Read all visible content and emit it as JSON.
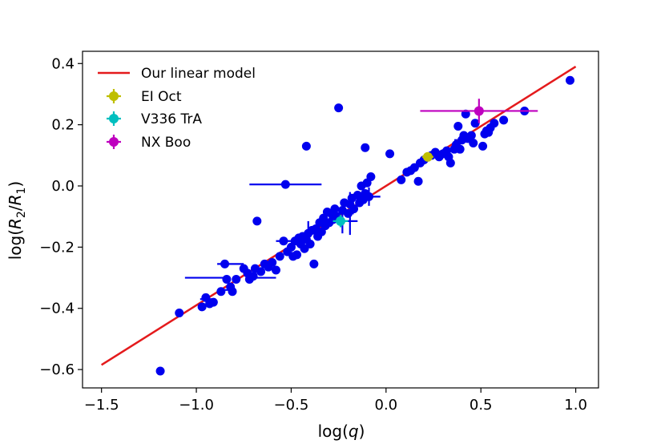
{
  "chart_data": {
    "type": "scatter",
    "xlabel_parts": [
      "log(",
      "q",
      ")"
    ],
    "ylabel_parts": [
      "log(",
      "R",
      "2",
      "/",
      "R",
      "1",
      ")"
    ],
    "xlim": [
      -1.6,
      1.12
    ],
    "ylim": [
      -0.66,
      0.44
    ],
    "xticks": [
      -1.5,
      -1.0,
      -0.5,
      0.0,
      0.5,
      1.0
    ],
    "xtick_labels": [
      "−1.5",
      "−1.0",
      "−0.5",
      "0.0",
      "0.5",
      "1.0"
    ],
    "yticks": [
      -0.6,
      -0.4,
      -0.2,
      0.0,
      0.2,
      0.4
    ],
    "ytick_labels": [
      "−0.6",
      "−0.4",
      "−0.2",
      "0.0",
      "0.2",
      "0.4"
    ],
    "grid": false,
    "legend_position": "top-left",
    "model": {
      "name": "Our linear model",
      "color": "#e41a1c",
      "x": [
        -1.5,
        1.0
      ],
      "y": [
        -0.585,
        0.39
      ]
    },
    "highlighted": [
      {
        "name": "EI Oct",
        "color": "#bfbf00",
        "x": 0.22,
        "y": 0.095,
        "xerr": 0.03,
        "yerr": 0.015
      },
      {
        "name": "V336 TrA",
        "color": "#00bfbf",
        "x": -0.24,
        "y": -0.115,
        "xerr": 0.04,
        "yerr": 0.02
      },
      {
        "name": "NX Boo",
        "color": "#bf00bf",
        "x": 0.49,
        "y": 0.245,
        "xerr": 0.31,
        "yerr": 0.04
      }
    ],
    "sample": {
      "color": "#0000ee",
      "points": [
        {
          "x": -1.19,
          "y": -0.605
        },
        {
          "x": -1.09,
          "y": -0.415
        },
        {
          "x": -0.97,
          "y": -0.395
        },
        {
          "x": -0.95,
          "y": -0.365
        },
        {
          "x": -0.93,
          "y": -0.385
        },
        {
          "x": -0.91,
          "y": -0.38
        },
        {
          "x": -0.87,
          "y": -0.345
        },
        {
          "x": -0.85,
          "y": -0.255
        },
        {
          "x": -0.84,
          "y": -0.305
        },
        {
          "x": -0.82,
          "y": -0.33
        },
        {
          "x": -0.81,
          "y": -0.345
        },
        {
          "x": -0.79,
          "y": -0.305
        },
        {
          "x": -0.75,
          "y": -0.27
        },
        {
          "x": -0.73,
          "y": -0.285
        },
        {
          "x": -0.72,
          "y": -0.305
        },
        {
          "x": -0.7,
          "y": -0.295
        },
        {
          "x": -0.69,
          "y": -0.27
        },
        {
          "x": -0.68,
          "y": -0.115
        },
        {
          "x": -0.66,
          "y": -0.28
        },
        {
          "x": -0.64,
          "y": -0.255
        },
        {
          "x": -0.62,
          "y": -0.265
        },
        {
          "x": -0.6,
          "y": -0.25
        },
        {
          "x": -0.58,
          "y": -0.275
        },
        {
          "x": -0.56,
          "y": -0.23
        },
        {
          "x": -0.54,
          "y": -0.18
        },
        {
          "x": -0.52,
          "y": -0.215
        },
        {
          "x": -0.5,
          "y": -0.2
        },
        {
          "x": -0.49,
          "y": -0.23
        },
        {
          "x": -0.48,
          "y": -0.18
        },
        {
          "x": -0.47,
          "y": -0.225
        },
        {
          "x": -0.46,
          "y": -0.17
        },
        {
          "x": -0.45,
          "y": -0.19
        },
        {
          "x": -0.44,
          "y": -0.165
        },
        {
          "x": -0.43,
          "y": -0.205
        },
        {
          "x": -0.42,
          "y": -0.175
        },
        {
          "x": -0.41,
          "y": -0.155
        },
        {
          "x": -0.4,
          "y": -0.19
        },
        {
          "x": -0.39,
          "y": -0.145
        },
        {
          "x": -0.38,
          "y": -0.255
        },
        {
          "x": -0.37,
          "y": -0.14
        },
        {
          "x": -0.36,
          "y": -0.165
        },
        {
          "x": -0.35,
          "y": -0.12
        },
        {
          "x": -0.34,
          "y": -0.15
        },
        {
          "x": -0.33,
          "y": -0.105
        },
        {
          "x": -0.32,
          "y": -0.13
        },
        {
          "x": -0.31,
          "y": -0.085
        },
        {
          "x": -0.3,
          "y": -0.12
        },
        {
          "x": -0.29,
          "y": -0.09
        },
        {
          "x": -0.28,
          "y": -0.11
        },
        {
          "x": -0.27,
          "y": -0.075
        },
        {
          "x": -0.26,
          "y": -0.1
        },
        {
          "x": -0.25,
          "y": 0.255
        },
        {
          "x": -0.23,
          "y": -0.08
        },
        {
          "x": -0.22,
          "y": -0.055
        },
        {
          "x": -0.2,
          "y": -0.09
        },
        {
          "x": -0.19,
          "y": -0.06
        },
        {
          "x": -0.18,
          "y": -0.04
        },
        {
          "x": -0.17,
          "y": -0.075
        },
        {
          "x": -0.15,
          "y": -0.03
        },
        {
          "x": -0.14,
          "y": -0.055
        },
        {
          "x": -0.13,
          "y": 0.0
        },
        {
          "x": -0.12,
          "y": -0.045
        },
        {
          "x": -0.11,
          "y": -0.025
        },
        {
          "x": -0.1,
          "y": 0.01
        },
        {
          "x": -0.09,
          "y": -0.035
        },
        {
          "x": -0.08,
          "y": 0.03
        },
        {
          "x": -0.11,
          "y": 0.125
        },
        {
          "x": -0.42,
          "y": 0.13
        },
        {
          "x": -0.53,
          "y": 0.005
        },
        {
          "x": 0.02,
          "y": 0.105
        },
        {
          "x": 0.08,
          "y": 0.02
        },
        {
          "x": 0.11,
          "y": 0.045
        },
        {
          "x": 0.13,
          "y": 0.05
        },
        {
          "x": 0.15,
          "y": 0.06
        },
        {
          "x": 0.17,
          "y": 0.015
        },
        {
          "x": 0.18,
          "y": 0.075
        },
        {
          "x": 0.2,
          "y": 0.085
        },
        {
          "x": 0.24,
          "y": 0.1
        },
        {
          "x": 0.26,
          "y": 0.11
        },
        {
          "x": 0.28,
          "y": 0.095
        },
        {
          "x": 0.3,
          "y": 0.105
        },
        {
          "x": 0.32,
          "y": 0.115
        },
        {
          "x": 0.33,
          "y": 0.095
        },
        {
          "x": 0.34,
          "y": 0.075
        },
        {
          "x": 0.36,
          "y": 0.12
        },
        {
          "x": 0.37,
          "y": 0.135
        },
        {
          "x": 0.38,
          "y": 0.195
        },
        {
          "x": 0.39,
          "y": 0.12
        },
        {
          "x": 0.4,
          "y": 0.15
        },
        {
          "x": 0.41,
          "y": 0.165
        },
        {
          "x": 0.42,
          "y": 0.235
        },
        {
          "x": 0.43,
          "y": 0.155
        },
        {
          "x": 0.45,
          "y": 0.165
        },
        {
          "x": 0.46,
          "y": 0.14
        },
        {
          "x": 0.47,
          "y": 0.205
        },
        {
          "x": 0.51,
          "y": 0.13
        },
        {
          "x": 0.52,
          "y": 0.17
        },
        {
          "x": 0.53,
          "y": 0.18
        },
        {
          "x": 0.54,
          "y": 0.175
        },
        {
          "x": 0.55,
          "y": 0.19
        },
        {
          "x": 0.57,
          "y": 0.205
        },
        {
          "x": 0.62,
          "y": 0.215
        },
        {
          "x": 0.73,
          "y": 0.245
        },
        {
          "x": 0.97,
          "y": 0.345
        }
      ],
      "errorbars": [
        {
          "x": -0.53,
          "y": 0.005,
          "xerr": 0.19,
          "yerr": 0.0
        },
        {
          "x": -0.94,
          "y": -0.3,
          "xerr": 0.12,
          "yerr": 0.0
        },
        {
          "x": -0.64,
          "y": -0.3,
          "xerr": 0.06,
          "yerr": 0.0
        },
        {
          "x": -0.82,
          "y": -0.255,
          "xerr": 0.07,
          "yerr": 0.0
        },
        {
          "x": -0.94,
          "y": -0.37,
          "xerr": 0.04,
          "yerr": 0.0
        },
        {
          "x": -0.83,
          "y": -0.34,
          "xerr": 0.04,
          "yerr": 0.0
        },
        {
          "x": -0.41,
          "y": -0.155,
          "xerr": 0.03,
          "yerr": 0.04
        },
        {
          "x": -0.19,
          "y": -0.09,
          "xerr": 0.02,
          "yerr": 0.07
        },
        {
          "x": -0.09,
          "y": -0.035,
          "xerr": 0.06,
          "yerr": 0.03
        },
        {
          "x": -0.23,
          "y": -0.115,
          "xerr": 0.08,
          "yerr": 0.04
        },
        {
          "x": 0.4,
          "y": 0.15,
          "xerr": 0.04,
          "yerr": 0.0
        },
        {
          "x": -0.54,
          "y": -0.18,
          "xerr": 0.04,
          "yerr": 0.0
        }
      ]
    }
  }
}
